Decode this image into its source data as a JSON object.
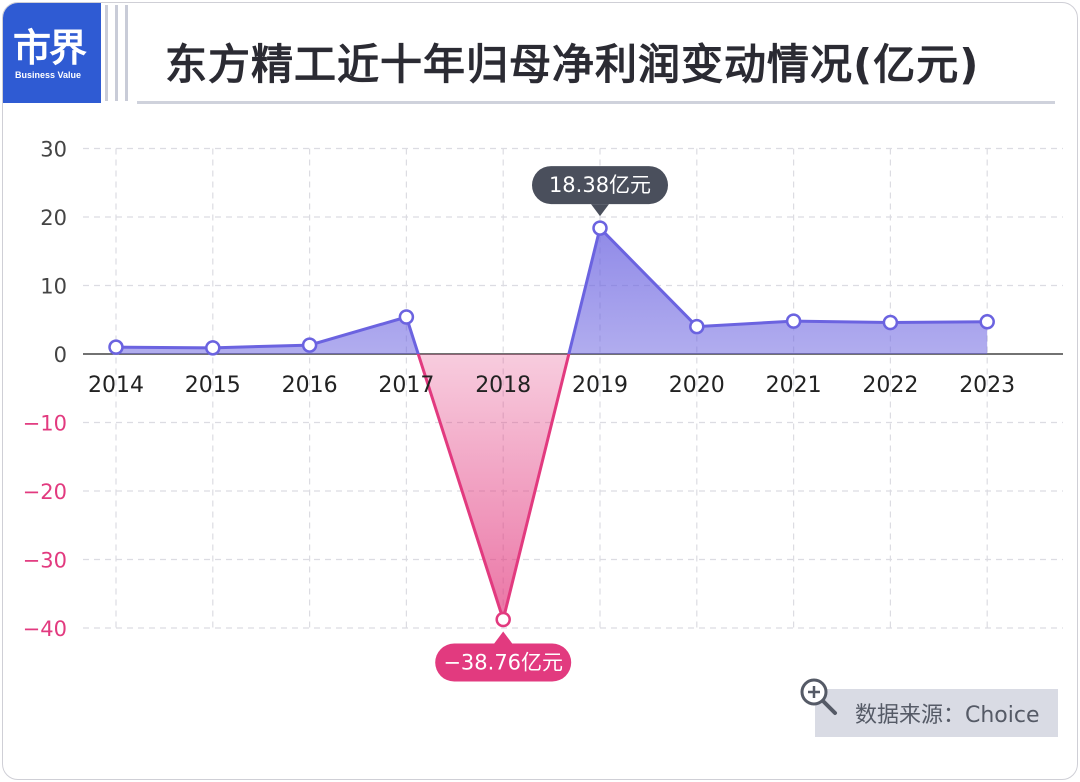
{
  "header": {
    "logo_text": "市界",
    "logo_sub": "Business Value",
    "title": "东方精工近十年归母净利润变动情况(亿元)"
  },
  "source": {
    "label": "数据来源：Choice",
    "icon": "magnifier-plus-icon"
  },
  "colors": {
    "positive": "#6b63e0",
    "negative": "#e23a7f",
    "axis_pos_text": "#444444",
    "axis_neg_text": "#e23a7f",
    "callout_pos_bg": "#4a4f5c",
    "callout_neg_bg": "#e23a7f"
  },
  "chart_data": {
    "type": "area",
    "categories": [
      "2014",
      "2015",
      "2016",
      "2017",
      "2018",
      "2019",
      "2020",
      "2021",
      "2022",
      "2023"
    ],
    "values": [
      1.0,
      0.9,
      1.3,
      5.4,
      -38.76,
      18.38,
      4.0,
      4.8,
      4.6,
      4.7
    ],
    "ylim": [
      -40,
      30
    ],
    "yticks": [
      30,
      20,
      10,
      0,
      -10,
      -20,
      -30,
      -40
    ],
    "ytick_labels": [
      "30",
      "20",
      "10",
      "0",
      "−10",
      "−20",
      "−30",
      "−40"
    ],
    "annotations": [
      {
        "index": 5,
        "text": "18.38亿元"
      },
      {
        "index": 4,
        "text": "−38.76亿元"
      }
    ],
    "grid": true,
    "title": "东方精工近十年归母净利润变动情况(亿元)",
    "xlabel": "",
    "ylabel": ""
  }
}
